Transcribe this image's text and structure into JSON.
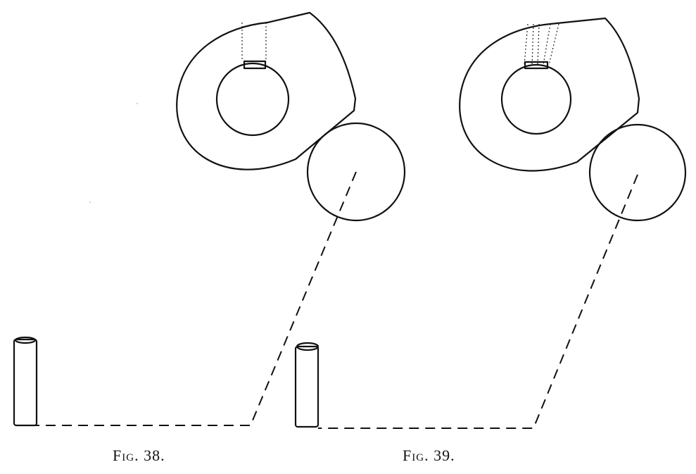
{
  "figures": [
    {
      "id": "fig-38",
      "caption": "Fig. 38."
    },
    {
      "id": "fig-39",
      "caption": "Fig. 39."
    }
  ]
}
